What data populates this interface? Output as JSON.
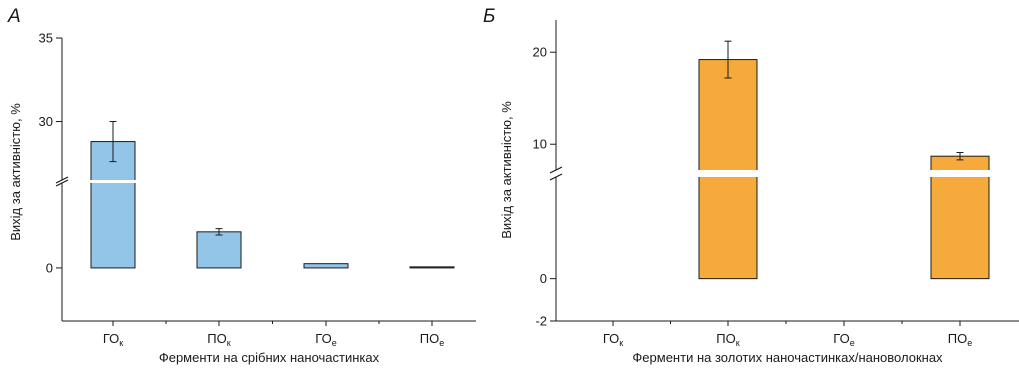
{
  "chart_data": [
    {
      "type": "bar",
      "panel_label": "А",
      "xlabel": "Ферменти на срібних наночастинках",
      "ylabel": "Вихід за активністю, %",
      "categories": [
        {
          "main": "ГО",
          "sub": "к"
        },
        {
          "main": "ПО",
          "sub": "к"
        },
        {
          "main": "ГО",
          "sub": "е"
        },
        {
          "main": "ПО",
          "sub": "е"
        }
      ],
      "values": [
        28.8,
        1.7,
        0.2,
        0.05
      ],
      "errors": [
        1.2,
        0.15,
        null,
        null
      ],
      "yticks": [
        0,
        30,
        35
      ],
      "ylim_lower": [
        -2.5,
        4
      ],
      "ylim_upper": [
        26.5,
        35
      ],
      "axis_break": true,
      "bar_color": "#92c5e8",
      "grid": false,
      "legend": "none"
    },
    {
      "type": "bar",
      "panel_label": "Б",
      "xlabel": "Ферменти на золотих наночастинках/нановолокнах",
      "ylabel": "Вихід за активністю, %",
      "categories": [
        {
          "main": "ГО",
          "sub": "к"
        },
        {
          "main": "ПО",
          "sub": "к"
        },
        {
          "main": "ГО",
          "sub": "е"
        },
        {
          "main": "ПО",
          "sub": "е"
        }
      ],
      "values": [
        0,
        19.2,
        0,
        8.7
      ],
      "errors": [
        null,
        2.0,
        null,
        0.4
      ],
      "yticks": [
        -2,
        0,
        10,
        20
      ],
      "ylim_lower": [
        -2,
        4.8
      ],
      "ylim_upper": [
        7.2,
        23.5
      ],
      "axis_break": true,
      "bar_color": "#f7aa3c",
      "grid": false,
      "legend": "none"
    }
  ]
}
